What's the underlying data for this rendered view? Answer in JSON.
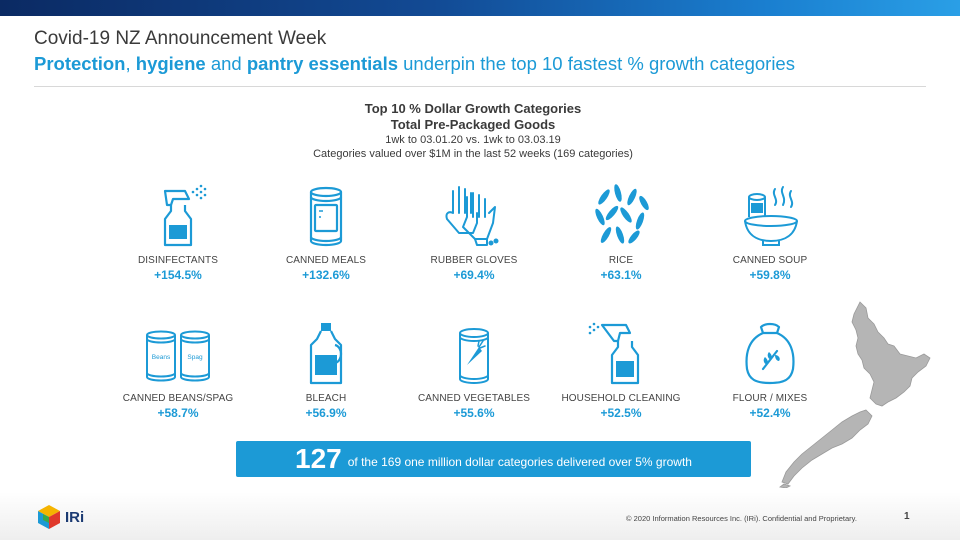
{
  "header": {
    "title": "Covid-19 NZ Announcement  Week",
    "subtitle": {
      "w1": "Protection",
      "w2": ", ",
      "w3": "hygiene",
      "w4": " and ",
      "w5": "pantry essentials",
      "w6": " underpin  the top 10 fastest % growth categories"
    }
  },
  "chart_header": {
    "line1": "Top 10 %  Dollar Growth Categories",
    "line2": "Total Pre-Packaged Goods",
    "line3": "1wk to 03.01.20 vs.  1wk to  03.03.19",
    "line4": "Categories valued over $1M in the last 52 weeks (169 categories)"
  },
  "categories": [
    {
      "label": "DISINFECTANTS",
      "value": "+154.5%",
      "icon": "spray-bottle-icon"
    },
    {
      "label": "CANNED  MEALS",
      "value": "+132.6%",
      "icon": "can-icon"
    },
    {
      "label": "RUBBER  GLOVES",
      "value": "+69.4%",
      "icon": "gloves-icon"
    },
    {
      "label": "RICE",
      "value": "+63.1%",
      "icon": "rice-icon"
    },
    {
      "label": "CANNED  SOUP",
      "value": "+59.8%",
      "icon": "soup-bowl-icon"
    },
    {
      "label": "CANNED  BEANS/SPAG",
      "value": "+58.7%",
      "icon": "beans-cans-icon",
      "can_labels": [
        "Beans",
        "Spag"
      ]
    },
    {
      "label": "BLEACH",
      "value": "+56.9%",
      "icon": "bleach-bottle-icon"
    },
    {
      "label": "CANNED  VEGETABLES",
      "value": "+55.6%",
      "icon": "vegetable-can-icon"
    },
    {
      "label": "HOUSEHOLD  CLEANING",
      "value": "+52.5%",
      "icon": "cleaning-spray-icon"
    },
    {
      "label": "FLOUR / MIXES",
      "value": "+52.4%",
      "icon": "flour-sack-icon"
    }
  ],
  "banner": {
    "count": "127",
    "text": "of the 169 one million dollar categories delivered  over  5% growth"
  },
  "footer": {
    "logo_text": "IRi",
    "copyright": "© 2020 Information  Resources  Inc. (IRi). Confidential  and  Proprietary.",
    "page": "1"
  },
  "colors": {
    "accent": "#1c9ad6",
    "dark_blue": "#0b2a63",
    "map_gray": "#b5b5b5"
  }
}
